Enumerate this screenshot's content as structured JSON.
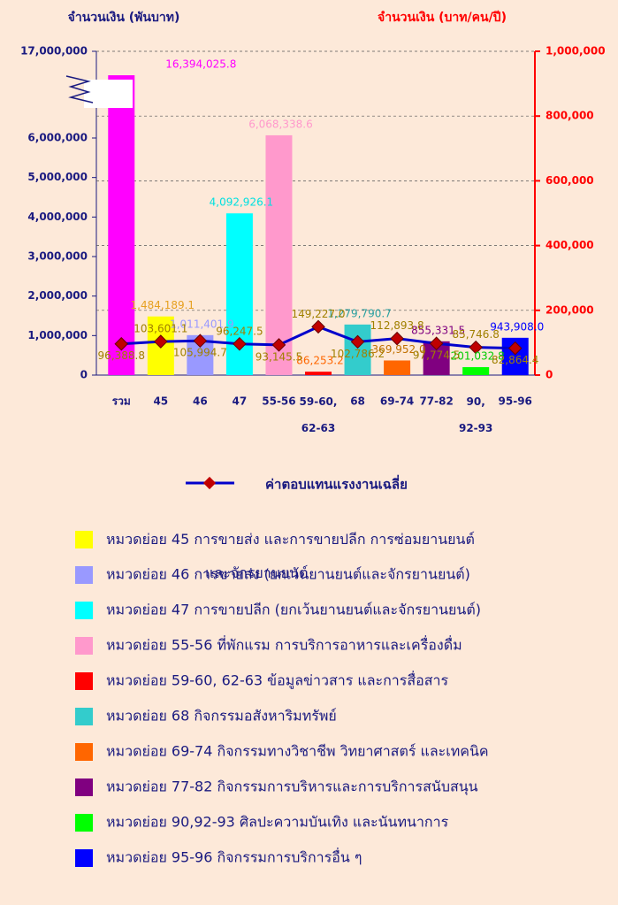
{
  "chart_data": {
    "type": "bar_line",
    "y_label": "จำนวนเงิน (พันบาท)",
    "y2_label": "จำนวนเงิน (บาท/คน/ปี)",
    "categories": [
      "รวม",
      "45",
      "46",
      "47",
      "55-56",
      "59-60,\n62-63",
      "68",
      "69-74",
      "77-82",
      "90,\n92-93",
      "95-96"
    ],
    "series": [
      {
        "type": "bar",
        "colors": [
          "#ff00ff",
          "#ffff00",
          "#9999ff",
          "#00ffff",
          "#ff99cc",
          "#ff0000",
          "#33cccc",
          "#ff6600",
          "#800080",
          "#00ff00",
          "#0000ff"
        ],
        "value_label_colors": [
          "#ff00ff",
          "#e6a020",
          "#9999ff",
          "#00e0e0",
          "#ff99cc",
          "#ff6600",
          "#2aa0a0",
          "#c07000",
          "#800080",
          "#00cc00",
          "#0000ff"
        ],
        "values": [
          16394025.8,
          1484189.1,
          1011401.9,
          4092926.1,
          6068338.6,
          86253.2,
          1279790.7,
          369952.0,
          855331.5,
          201032.8,
          943908.0
        ],
        "value_labels": [
          "16,394,025.8",
          "1,484,189.1",
          "1,011,401.9",
          "4,092,926.1",
          "6,068,338.6",
          "86,253.2",
          "1,279,790.7",
          "369,952.0",
          "855,331.5",
          "201,032.8",
          "943,908.0"
        ]
      },
      {
        "type": "line",
        "name": "ค่าตอบแทนแรงงานเฉลี่ย",
        "axis": "y2",
        "color": "#0000cc",
        "marker_color": "#c00000",
        "label_color": "#a08000",
        "values": [
          96388.8,
          103601.1,
          105994.7,
          96247.5,
          93145.5,
          149227.0,
          102786.2,
          112893.8,
          97774.5,
          85746.8,
          82864.4
        ],
        "value_labels": [
          "96,388.8",
          "103,601.1",
          "105,994.7",
          "96,247.5",
          "93,145.5",
          "149,227.0",
          "102,786.2",
          "112,893.8",
          "97,774.5",
          "85,746.8",
          "82,864.4"
        ]
      }
    ],
    "ylim": [
      0,
      17000000
    ],
    "ybreak": [
      6800000,
      16000000
    ],
    "yticks": [
      {
        "value": 0,
        "label": "0"
      },
      {
        "value": 1000000,
        "label": "1,000,000"
      },
      {
        "value": 2000000,
        "label": "2,000,000"
      },
      {
        "value": 3000000,
        "label": "3,000,000"
      },
      {
        "value": 4000000,
        "label": "4,000,000"
      },
      {
        "value": 5000000,
        "label": "5,000,000"
      },
      {
        "value": 6000000,
        "label": "6,000,000"
      },
      {
        "value": 17000000,
        "label": "17,000,000"
      }
    ],
    "y2lim": [
      0,
      1000000
    ],
    "y2ticks": [
      {
        "value": 0,
        "label": "0"
      },
      {
        "value": 200000,
        "label": "200,000"
      },
      {
        "value": 400000,
        "label": "400,000"
      },
      {
        "value": 600000,
        "label": "600,000"
      },
      {
        "value": 800000,
        "label": "800,000"
      },
      {
        "value": 1000000,
        "label": "1,000,000"
      }
    ],
    "grid": true,
    "legend": [
      {
        "color": "#ffff00",
        "text": "หมวดย่อย 45 การขายส่ง และการขายปลีก การซ่อมยานยนต์\nและจักรยานยนต์"
      },
      {
        "color": "#9999ff",
        "text": "หมวดย่อย 46 การขายส่ง (ยกเว้นยานยนต์และจักรยานยนต์)"
      },
      {
        "color": "#00ffff",
        "text": "หมวดย่อย  47 การขายปลีก (ยกเว้นยานยนต์และจักรยานยนต์)"
      },
      {
        "color": "#ff99cc",
        "text": "หมวดย่อย 55-56 ที่พักแรม การบริการอาหารและเครื่องดื่ม"
      },
      {
        "color": "#ff0000",
        "text": "หมวดย่อย 59-60, 62-63 ข้อมูลข่าวสาร และการสื่อสาร"
      },
      {
        "color": "#33cccc",
        "text": "หมวดย่อย 68 กิจกรรมอสังหาริมทรัพย์"
      },
      {
        "color": "#ff6600",
        "text": "หมวดย่อย 69-74 กิจกรรมทางวิชาชีพ วิทยาศาสตร์ และเทคนิค"
      },
      {
        "color": "#800080",
        "text": "หมวดย่อย 77-82 กิจกรรมการบริหารและการบริการสนับสนุน"
      },
      {
        "color": "#00ff00",
        "text": "หมวดย่อย 90,92-93 ศิลปะความบันเทิง และนันทนาการ"
      },
      {
        "color": "#0000ff",
        "text": "หมวดย่อย 95-96 กิจกรรมการบริการอื่น ๆ"
      }
    ]
  }
}
